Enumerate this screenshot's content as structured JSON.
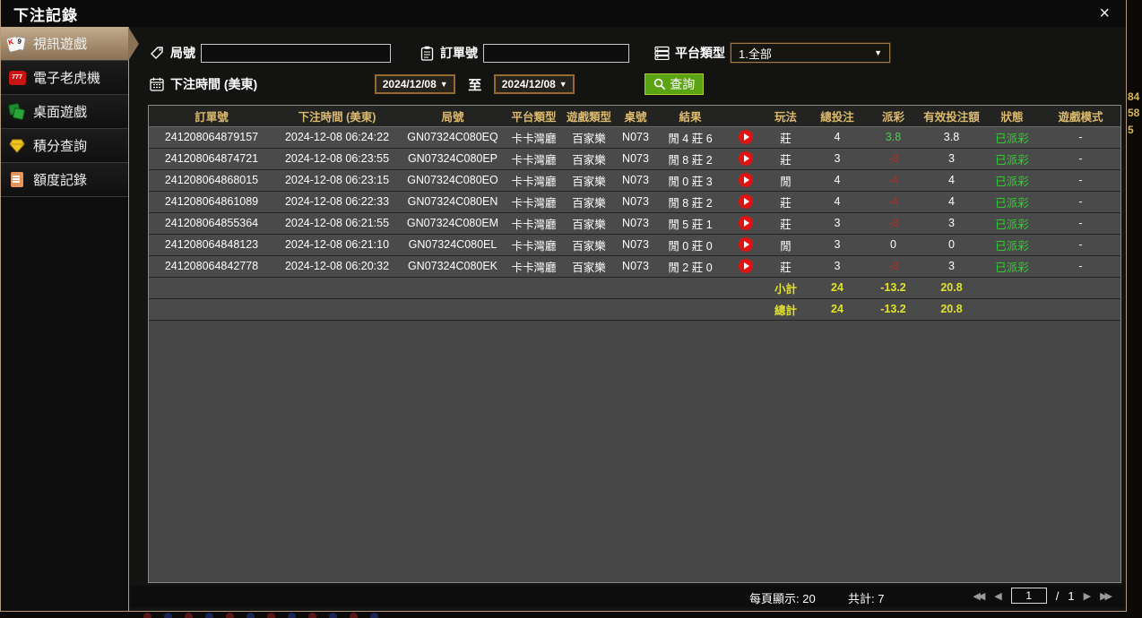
{
  "dialog": {
    "title": "下注記錄",
    "close_glyph": "×"
  },
  "sidebar": {
    "items": [
      {
        "label": "視訊遊戲",
        "icon": "cards-icon",
        "active": true
      },
      {
        "label": "電子老虎機",
        "icon": "slot-777-icon",
        "active": false
      },
      {
        "label": "桌面遊戲",
        "icon": "table-games-icon",
        "active": false
      },
      {
        "label": "積分查詢",
        "icon": "diamond-icon",
        "active": false
      },
      {
        "label": "額度記錄",
        "icon": "document-icon",
        "active": false
      }
    ]
  },
  "filters": {
    "round_label": "局號",
    "round_value": "",
    "order_label": "訂單號",
    "order_value": "",
    "platform_label": "平台類型",
    "platform_selected": "1.全部",
    "time_label": "下注時間 (美東)",
    "date_from": "2024/12/08",
    "to_label": "至",
    "date_to": "2024/12/08",
    "query_label": "查詢",
    "dropdown_arrow": "▼"
  },
  "table": {
    "headers": [
      "訂單號",
      "下注時間 (美東)",
      "局號",
      "平台類型",
      "遊戲類型",
      "桌號",
      "結果",
      "",
      "玩法",
      "總投注",
      "派彩",
      "有效投注額",
      "狀態",
      "遊戲模式"
    ],
    "rows": [
      {
        "order": "241208064879157",
        "time": "2024-12-08 06:24:22",
        "round": "GN07324C080EQ",
        "platform": "卡卡灣廳",
        "game": "百家樂",
        "table_no": "N073",
        "result": "閒 4 莊 6",
        "play": "莊",
        "total_bet": "4",
        "payout": "3.8",
        "valid_bet": "3.8",
        "status": "已派彩",
        "mode": "-"
      },
      {
        "order": "241208064874721",
        "time": "2024-12-08 06:23:55",
        "round": "GN07324C080EP",
        "platform": "卡卡灣廳",
        "game": "百家樂",
        "table_no": "N073",
        "result": "閒 8 莊 2",
        "play": "莊",
        "total_bet": "3",
        "payout": "-3",
        "valid_bet": "3",
        "status": "已派彩",
        "mode": "-"
      },
      {
        "order": "241208064868015",
        "time": "2024-12-08 06:23:15",
        "round": "GN07324C080EO",
        "platform": "卡卡灣廳",
        "game": "百家樂",
        "table_no": "N073",
        "result": "閒 0 莊 3",
        "play": "閒",
        "total_bet": "4",
        "payout": "-4",
        "valid_bet": "4",
        "status": "已派彩",
        "mode": "-"
      },
      {
        "order": "241208064861089",
        "time": "2024-12-08 06:22:33",
        "round": "GN07324C080EN",
        "platform": "卡卡灣廳",
        "game": "百家樂",
        "table_no": "N073",
        "result": "閒 8 莊 2",
        "play": "莊",
        "total_bet": "4",
        "payout": "-4",
        "valid_bet": "4",
        "status": "已派彩",
        "mode": "-"
      },
      {
        "order": "241208064855364",
        "time": "2024-12-08 06:21:55",
        "round": "GN07324C080EM",
        "platform": "卡卡灣廳",
        "game": "百家樂",
        "table_no": "N073",
        "result": "閒 5 莊 1",
        "play": "莊",
        "total_bet": "3",
        "payout": "-3",
        "valid_bet": "3",
        "status": "已派彩",
        "mode": "-"
      },
      {
        "order": "241208064848123",
        "time": "2024-12-08 06:21:10",
        "round": "GN07324C080EL",
        "platform": "卡卡灣廳",
        "game": "百家樂",
        "table_no": "N073",
        "result": "閒 0 莊 0",
        "play": "閒",
        "total_bet": "3",
        "payout": "0",
        "valid_bet": "0",
        "status": "已派彩",
        "mode": "-"
      },
      {
        "order": "241208064842778",
        "time": "2024-12-08 06:20:32",
        "round": "GN07324C080EK",
        "platform": "卡卡灣廳",
        "game": "百家樂",
        "table_no": "N073",
        "result": "閒 2 莊 0",
        "play": "莊",
        "total_bet": "3",
        "payout": "-3",
        "valid_bet": "3",
        "status": "已派彩",
        "mode": "-"
      }
    ],
    "subtotal": {
      "label": "小計",
      "total_bet": "24",
      "payout": "-13.2",
      "valid_bet": "20.8"
    },
    "total": {
      "label": "總計",
      "total_bet": "24",
      "payout": "-13.2",
      "valid_bet": "20.8"
    }
  },
  "footer": {
    "per_page": "每頁顯示: 20",
    "total_count": "共計: 7",
    "page_value": "1",
    "page_separator": "/",
    "page_count": "1",
    "first_glyph": "◀◀",
    "prev_glyph": "◀",
    "next_glyph": "▶",
    "last_glyph": "▶▶"
  },
  "background": {
    "edge_numbers": [
      "84",
      "58",
      "5"
    ]
  },
  "colors": {
    "accent_tan": "#b59b7c",
    "active_item_top": "#c3ab8c",
    "active_item_bottom": "#8a7054",
    "header_text": "#dcba6e",
    "row_bg": "#4a4a4a",
    "positive_green": "#3fd63f",
    "status_green": "#2ed32e",
    "negative_red": "#aa2e2e",
    "summary_yellow": "#e3e32a",
    "query_green": "#5aa313",
    "date_border": "#96692e"
  }
}
